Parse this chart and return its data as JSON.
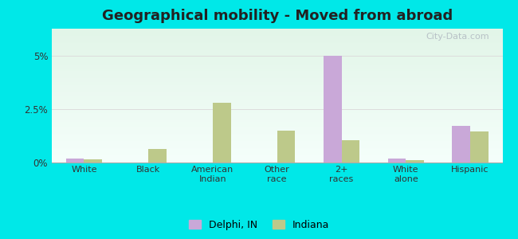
{
  "title": "Geographical mobility - Moved from abroad",
  "categories": [
    "White",
    "Black",
    "American\nIndian",
    "Other\nrace",
    "2+\nraces",
    "White\nalone",
    "Hispanic"
  ],
  "delphi_values": [
    0.2,
    0.0,
    0.0,
    0.0,
    5.0,
    0.2,
    1.7
  ],
  "indiana_values": [
    0.15,
    0.65,
    2.8,
    1.5,
    1.05,
    0.1,
    1.45
  ],
  "delphi_color": "#c9a8d8",
  "indiana_color": "#bdc98a",
  "background_outer": "#00e8e8",
  "ylim": [
    0,
    6.25
  ],
  "yticks": [
    0,
    2.5,
    5.0
  ],
  "ytick_labels": [
    "0%",
    "2.5%",
    "5%"
  ],
  "grid_color": "#dddddd",
  "title_fontsize": 13,
  "bar_width": 0.28,
  "legend_delphi": "Delphi, IN",
  "legend_indiana": "Indiana",
  "watermark": "City-Data.com"
}
